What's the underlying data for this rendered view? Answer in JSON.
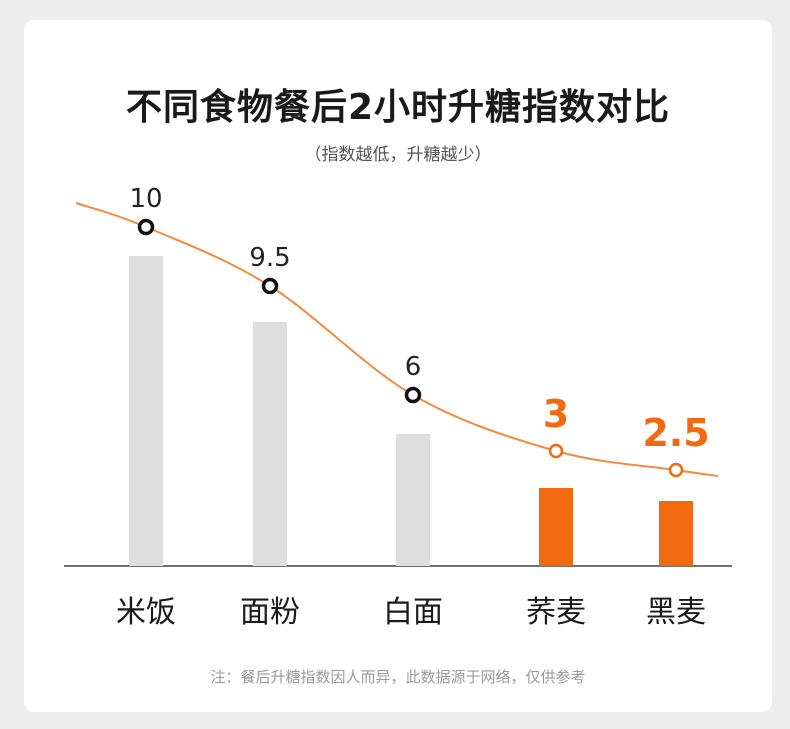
{
  "chart_data": {
    "type": "bar",
    "title": "不同食物餐后2小时升糖指数对比",
    "subtitle": "（指数越低，升糖越少）",
    "categories": [
      "米饭",
      "面粉",
      "白面",
      "荞麦",
      "黑麦"
    ],
    "values": [
      10,
      9.5,
      6,
      3,
      2.5
    ],
    "value_labels": [
      "10",
      "9.5",
      "6",
      "3",
      "2.5"
    ],
    "highlighted": [
      false,
      false,
      false,
      true,
      true
    ],
    "ylim": [
      0,
      11
    ],
    "grid": false,
    "trend_line": true
  },
  "colors": {
    "bar_default": "#dedede",
    "bar_highlight": "#f26a10",
    "line": "#f58a3c",
    "marker_default": "#111111",
    "marker_highlight": "#f26a10"
  },
  "footnote": "注：餐后升糖指数因人而异，此数据源于网络，仅供参考"
}
